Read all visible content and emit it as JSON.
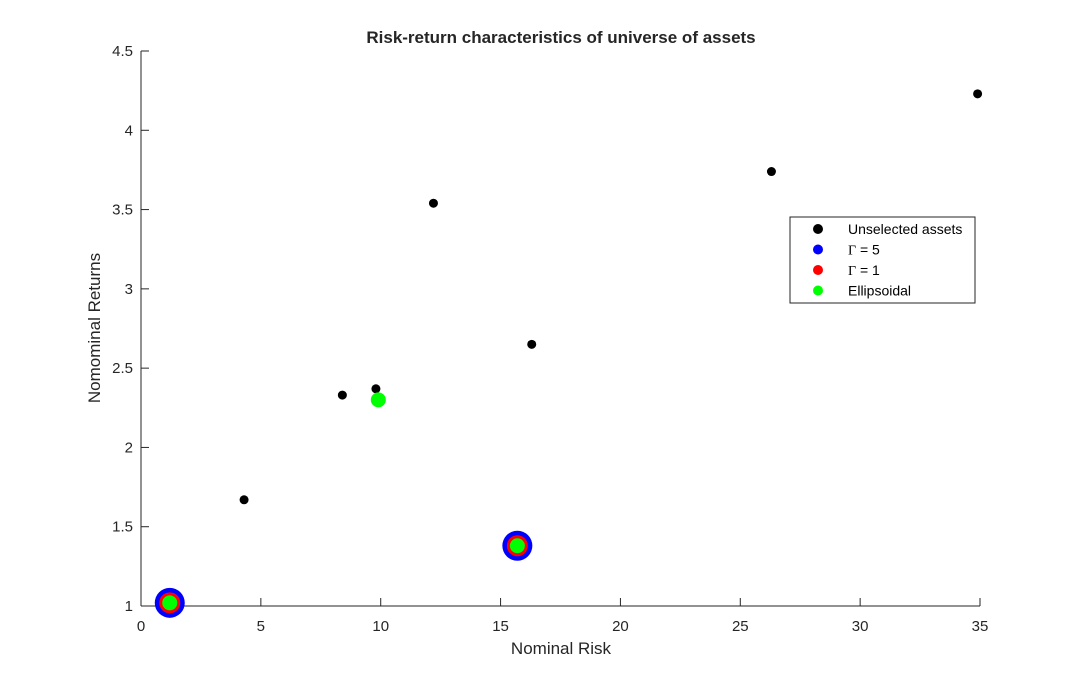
{
  "chart_data": {
    "type": "scatter",
    "title": "Risk-return characteristics of universe of assets",
    "xlabel": "Nominal Risk",
    "ylabel": "Nomominal Returns",
    "xlim": [
      0,
      35
    ],
    "ylim": [
      1,
      4.5
    ],
    "xticks": [
      0,
      5,
      10,
      15,
      20,
      25,
      30,
      35
    ],
    "yticks": [
      1,
      1.5,
      2,
      2.5,
      3,
      3.5,
      4,
      4.5
    ],
    "grid": false,
    "legend_position": "right",
    "series": [
      {
        "name": "Unselected assets",
        "color": "#000000",
        "marker_size": 3,
        "points": [
          {
            "x": 4.3,
            "y": 1.67
          },
          {
            "x": 8.4,
            "y": 2.33
          },
          {
            "x": 9.8,
            "y": 2.37
          },
          {
            "x": 12.2,
            "y": 3.54
          },
          {
            "x": 16.3,
            "y": 2.65
          },
          {
            "x": 26.3,
            "y": 3.74
          },
          {
            "x": 34.9,
            "y": 4.23
          }
        ]
      },
      {
        "name": "Γ = 5",
        "legend_symbol": "Γ",
        "legend_rest": " = 5",
        "color": "#0000ff",
        "marker_size": 10,
        "points": [
          {
            "x": 1.2,
            "y": 1.02
          },
          {
            "x": 15.7,
            "y": 1.38
          }
        ]
      },
      {
        "name": "Γ = 1",
        "legend_symbol": "Γ",
        "legend_rest": " = 1",
        "color": "#ff0000",
        "marker_size": 7,
        "points": [
          {
            "x": 1.2,
            "y": 1.02
          },
          {
            "x": 15.7,
            "y": 1.38
          }
        ]
      },
      {
        "name": "Ellipsoidal",
        "color": "#00ff00",
        "marker_size": 5,
        "points": [
          {
            "x": 1.2,
            "y": 1.02
          },
          {
            "x": 15.7,
            "y": 1.38
          },
          {
            "x": 9.9,
            "y": 2.3
          }
        ]
      }
    ]
  }
}
